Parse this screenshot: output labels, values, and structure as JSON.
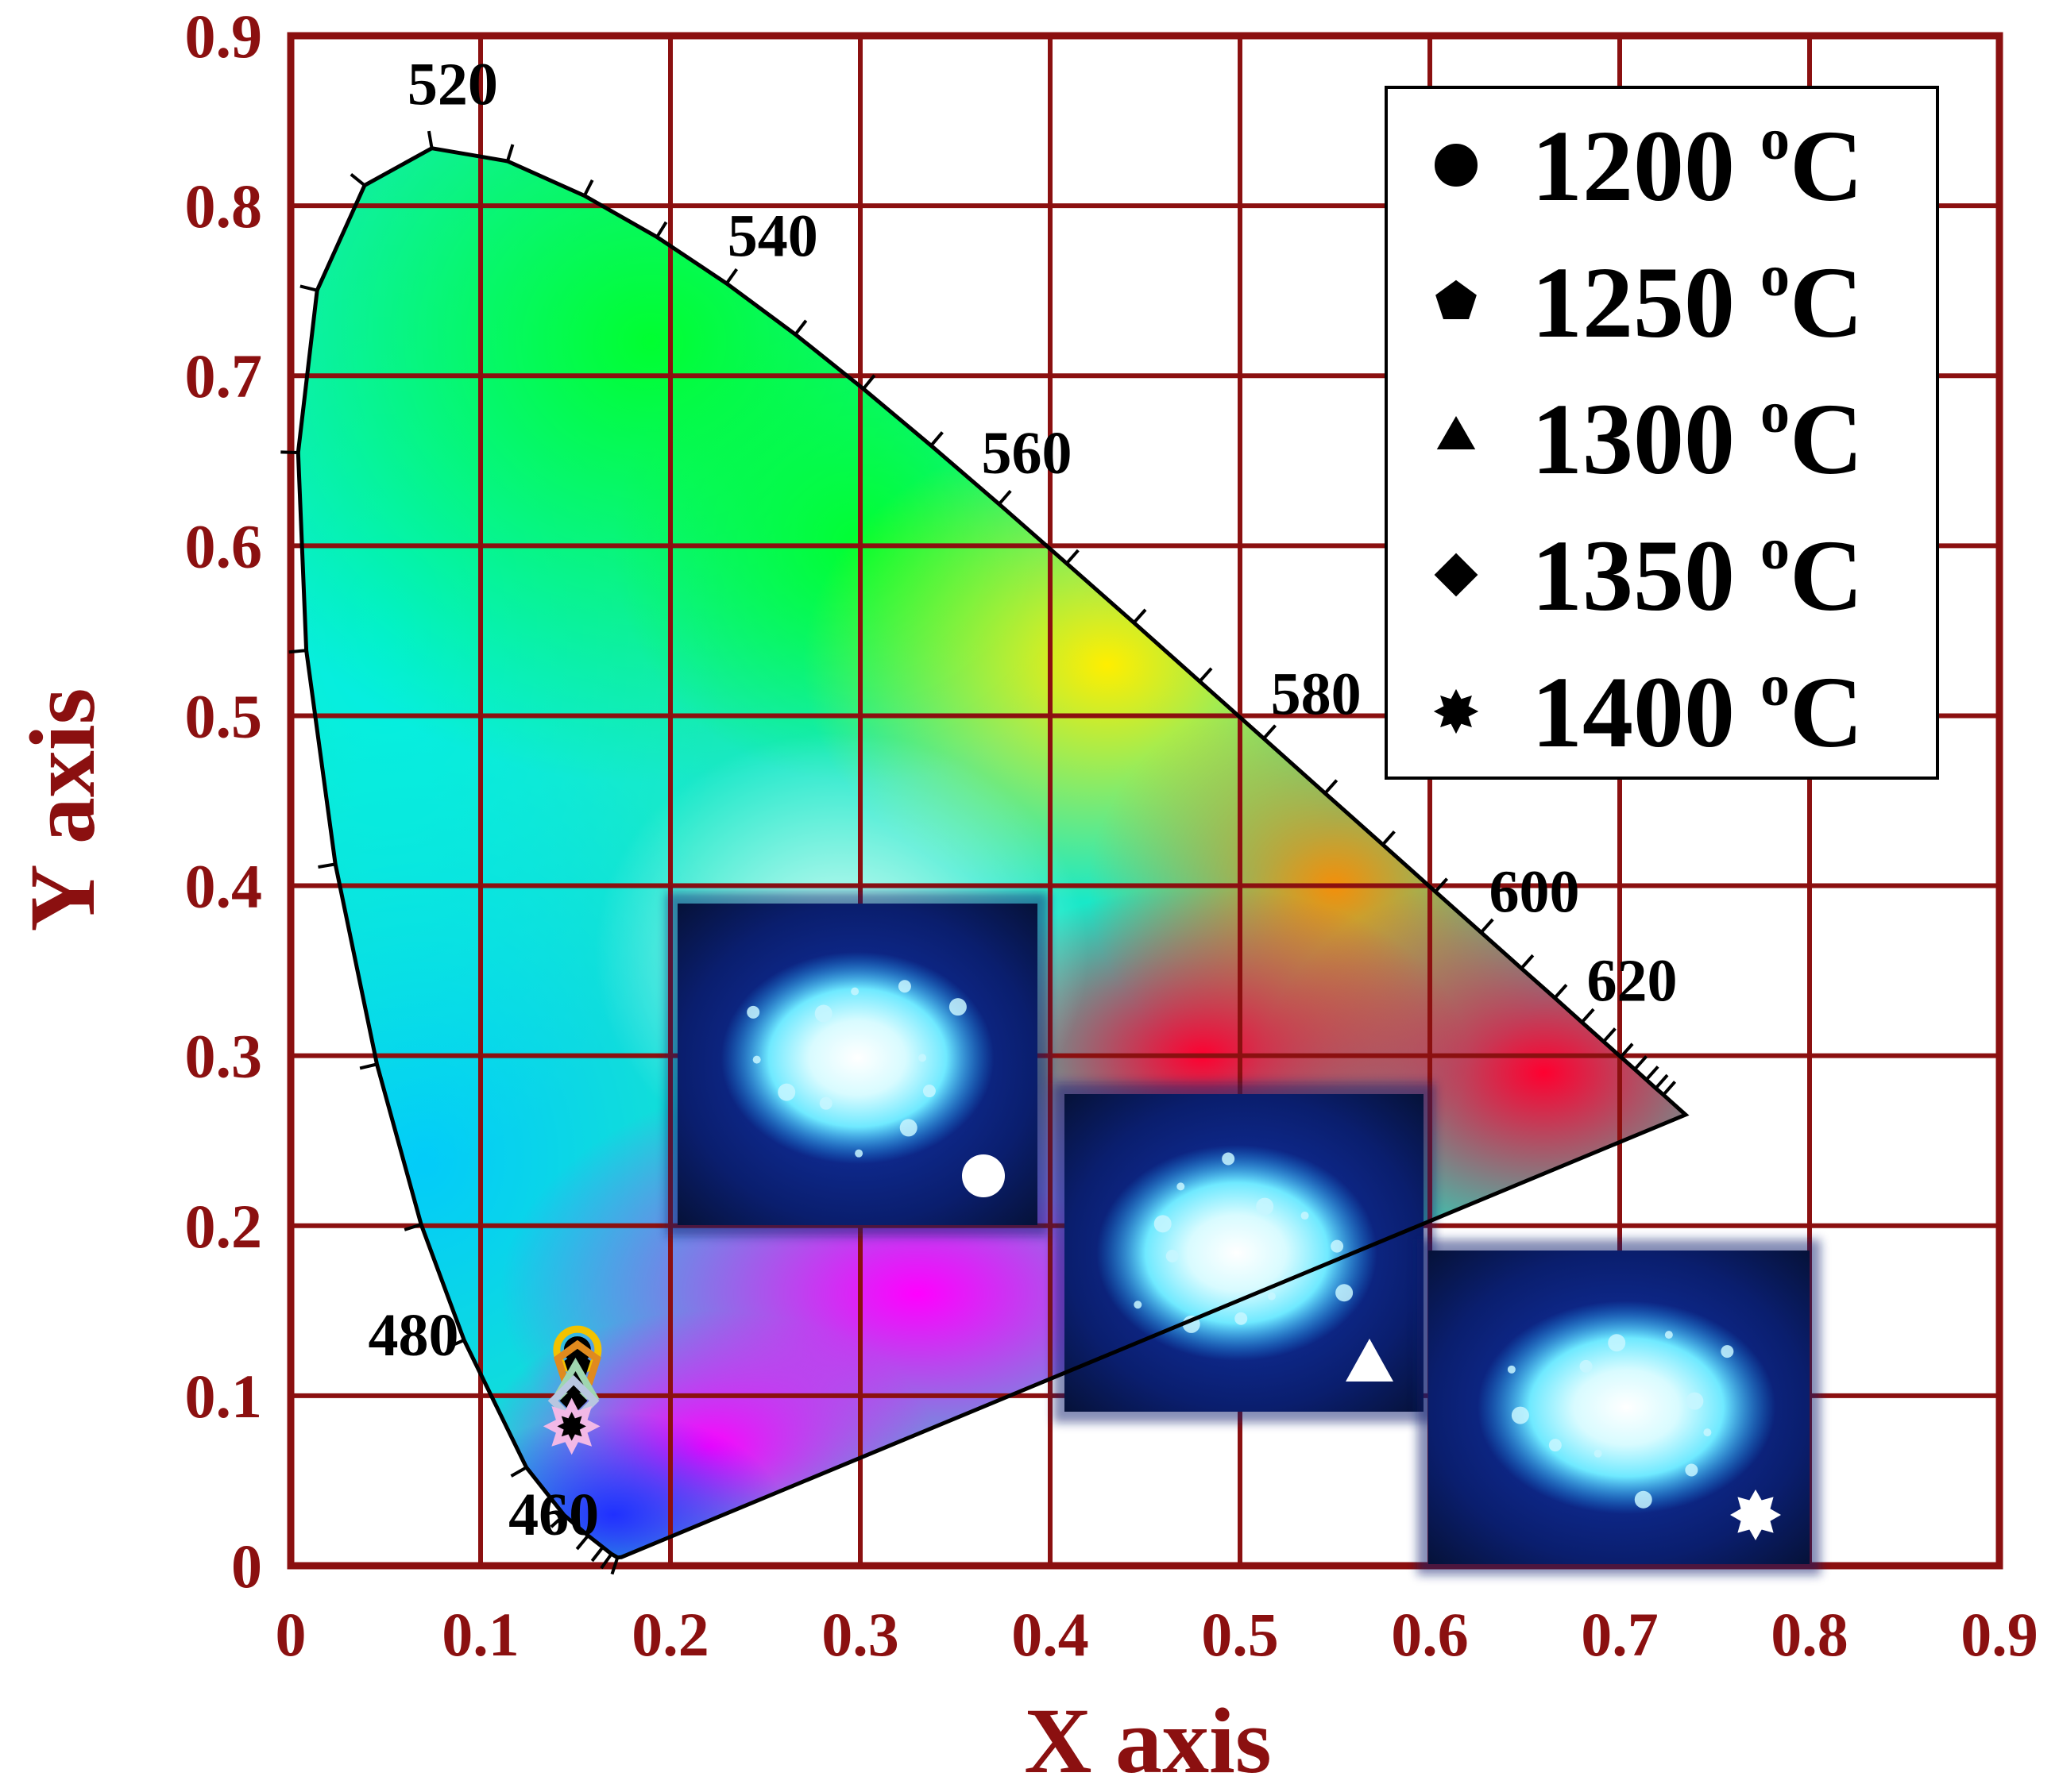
{
  "chart_data": {
    "type": "scatter",
    "title": "",
    "xlabel": "X axis",
    "ylabel": "Y axis",
    "xlim": [
      0,
      0.9
    ],
    "ylim": [
      0,
      0.9
    ],
    "grid": true,
    "x_ticks": [
      "0",
      "0.1",
      "0.2",
      "0.3",
      "0.4",
      "0.5",
      "0.6",
      "0.7",
      "0.8",
      "0.9"
    ],
    "y_ticks": [
      "0",
      "0.1",
      "0.2",
      "0.3",
      "0.4",
      "0.5",
      "0.6",
      "0.7",
      "0.8",
      "0.9"
    ],
    "legend_position": "top-right",
    "series": [
      {
        "name": "1200 oC",
        "temperature": "1200",
        "unit": "oC",
        "marker": "circle",
        "outline": "#f2c200",
        "x": 0.151,
        "y": 0.127
      },
      {
        "name": "1250 oC",
        "temperature": "1250",
        "unit": "oC",
        "marker": "pentagon",
        "outline": "#e08a1e",
        "x": 0.151,
        "y": 0.118
      },
      {
        "name": "1300 oC",
        "temperature": "1300",
        "unit": "oC",
        "marker": "triangle",
        "outline": "#9fd6b0",
        "x": 0.15,
        "y": 0.106
      },
      {
        "name": "1350 oC",
        "temperature": "1350",
        "unit": "oC",
        "marker": "diamond",
        "outline": "#b8c6e0",
        "x": 0.149,
        "y": 0.097
      },
      {
        "name": "1400 oC",
        "temperature": "1400",
        "unit": "oC",
        "marker": "star",
        "outline": "#f2b8e6",
        "x": 0.148,
        "y": 0.082
      }
    ],
    "wavelength_labels": [
      {
        "text": "460",
        "x": 0.144,
        "y": 0.03
      },
      {
        "text": "480",
        "x": 0.091,
        "y": 0.133
      },
      {
        "text": "520",
        "x": 0.074,
        "y": 0.834
      },
      {
        "text": "540",
        "x": 0.23,
        "y": 0.754
      },
      {
        "text": "560",
        "x": 0.373,
        "y": 0.624
      },
      {
        "text": "580",
        "x": 0.512,
        "y": 0.487
      },
      {
        "text": "600",
        "x": 0.627,
        "y": 0.373
      },
      {
        "text": "620",
        "x": 0.691,
        "y": 0.309
      }
    ],
    "spectral_locus": [
      [
        0.1741,
        0.005
      ],
      [
        0.1721,
        0.0048
      ],
      [
        0.1689,
        0.0069
      ],
      [
        0.1644,
        0.0109
      ],
      [
        0.1566,
        0.0177
      ],
      [
        0.144,
        0.0297
      ],
      [
        0.1241,
        0.0578
      ],
      [
        0.0913,
        0.1327
      ],
      [
        0.0687,
        0.2007
      ],
      [
        0.0454,
        0.295
      ],
      [
        0.0235,
        0.4127
      ],
      [
        0.0082,
        0.5384
      ],
      [
        0.0039,
        0.6548
      ],
      [
        0.0139,
        0.7502
      ],
      [
        0.0389,
        0.812
      ],
      [
        0.0743,
        0.8338
      ],
      [
        0.1142,
        0.8262
      ],
      [
        0.1547,
        0.8059
      ],
      [
        0.1929,
        0.7816
      ],
      [
        0.2296,
        0.7543
      ],
      [
        0.2658,
        0.7243
      ],
      [
        0.3016,
        0.6923
      ],
      [
        0.3373,
        0.6589
      ],
      [
        0.3731,
        0.6245
      ],
      [
        0.4087,
        0.5896
      ],
      [
        0.4441,
        0.5547
      ],
      [
        0.4788,
        0.5202
      ],
      [
        0.5125,
        0.4866
      ],
      [
        0.5448,
        0.4544
      ],
      [
        0.5752,
        0.4242
      ],
      [
        0.6029,
        0.3965
      ],
      [
        0.627,
        0.3725
      ],
      [
        0.6482,
        0.3514
      ],
      [
        0.6658,
        0.334
      ],
      [
        0.6801,
        0.3197
      ],
      [
        0.6915,
        0.3083
      ],
      [
        0.7006,
        0.2993
      ],
      [
        0.7079,
        0.292
      ],
      [
        0.714,
        0.2859
      ],
      [
        0.719,
        0.2809
      ],
      [
        0.723,
        0.277
      ],
      [
        0.726,
        0.274
      ],
      [
        0.7347,
        0.2653
      ]
    ],
    "insets": [
      {
        "label": "1200 oC sample photo",
        "badge": "circle"
      },
      {
        "label": "1300 oC sample photo",
        "badge": "triangle"
      },
      {
        "label": "1400 oC sample photo",
        "badge": "star"
      }
    ]
  }
}
